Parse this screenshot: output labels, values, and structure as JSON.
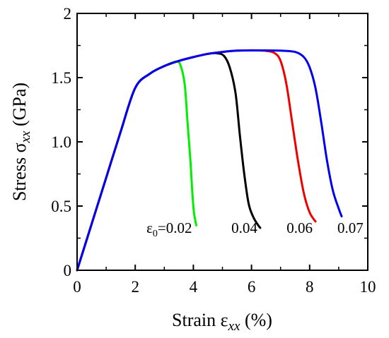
{
  "chart_data": {
    "type": "line",
    "xlabel": {
      "prefix": "Strain ε",
      "subscript": "xx",
      "suffix": " (%)"
    },
    "ylabel": {
      "prefix": "Stress σ",
      "subscript": "xx",
      "suffix": "  (GPa)"
    },
    "xlim": [
      0,
      10
    ],
    "ylim": [
      0,
      2
    ],
    "xticks": [
      0,
      2,
      4,
      6,
      8,
      10
    ],
    "xtick_labels": [
      "0",
      "2",
      "4",
      "6",
      "8",
      "10"
    ],
    "yticks": [
      0,
      0.5,
      1.0,
      1.5,
      2
    ],
    "ytick_labels": [
      "0",
      "0.5",
      "1.0",
      "1.5",
      "2"
    ],
    "grid": false,
    "series": [
      {
        "label": "0.02",
        "label_prefix": "ε",
        "label_subscript": "0",
        "label_eq": "=0.02",
        "color": "#00ee00",
        "x": [
          0,
          0.5,
          1.0,
          1.5,
          2.0,
          2.5,
          3.0,
          3.4,
          3.55,
          3.7,
          3.8,
          3.9,
          3.96,
          4.02,
          4.1
        ],
        "y": [
          0,
          0.36,
          0.72,
          1.08,
          1.42,
          1.53,
          1.59,
          1.625,
          1.6,
          1.45,
          1.15,
          0.85,
          0.62,
          0.45,
          0.35
        ]
      },
      {
        "label": "0.04",
        "color": "#000000",
        "x": [
          0,
          0.5,
          1.0,
          1.5,
          2.0,
          2.5,
          3.0,
          3.5,
          4.0,
          4.5,
          4.8,
          5.05,
          5.25,
          5.45,
          5.6,
          5.75,
          5.9,
          6.05,
          6.2,
          6.3
        ],
        "y": [
          0,
          0.36,
          0.72,
          1.08,
          1.42,
          1.53,
          1.59,
          1.63,
          1.66,
          1.685,
          1.69,
          1.67,
          1.58,
          1.38,
          1.05,
          0.75,
          0.52,
          0.42,
          0.36,
          0.33
        ]
      },
      {
        "label": "0.06",
        "color": "#ee0000",
        "x": [
          0,
          0.5,
          1.0,
          1.5,
          2.0,
          2.5,
          3.0,
          3.5,
          4.0,
          4.5,
          5.0,
          5.5,
          6.0,
          6.5,
          6.8,
          7.0,
          7.2,
          7.4,
          7.6,
          7.8,
          8.0,
          8.2
        ],
        "y": [
          0,
          0.36,
          0.72,
          1.08,
          1.42,
          1.53,
          1.59,
          1.63,
          1.66,
          1.685,
          1.7,
          1.71,
          1.712,
          1.708,
          1.69,
          1.63,
          1.45,
          1.15,
          0.85,
          0.6,
          0.45,
          0.38
        ]
      },
      {
        "label": "0.07",
        "color": "#0000ee",
        "x": [
          0,
          0.5,
          1.0,
          1.5,
          2.0,
          2.5,
          3.0,
          3.5,
          4.0,
          4.5,
          5.0,
          5.5,
          6.0,
          6.5,
          7.0,
          7.5,
          7.8,
          8.0,
          8.2,
          8.4,
          8.6,
          8.8,
          9.0,
          9.1
        ],
        "y": [
          0,
          0.36,
          0.72,
          1.08,
          1.42,
          1.53,
          1.59,
          1.63,
          1.66,
          1.685,
          1.7,
          1.71,
          1.712,
          1.712,
          1.71,
          1.7,
          1.66,
          1.58,
          1.42,
          1.15,
          0.85,
          0.62,
          0.48,
          0.42
        ]
      }
    ]
  }
}
